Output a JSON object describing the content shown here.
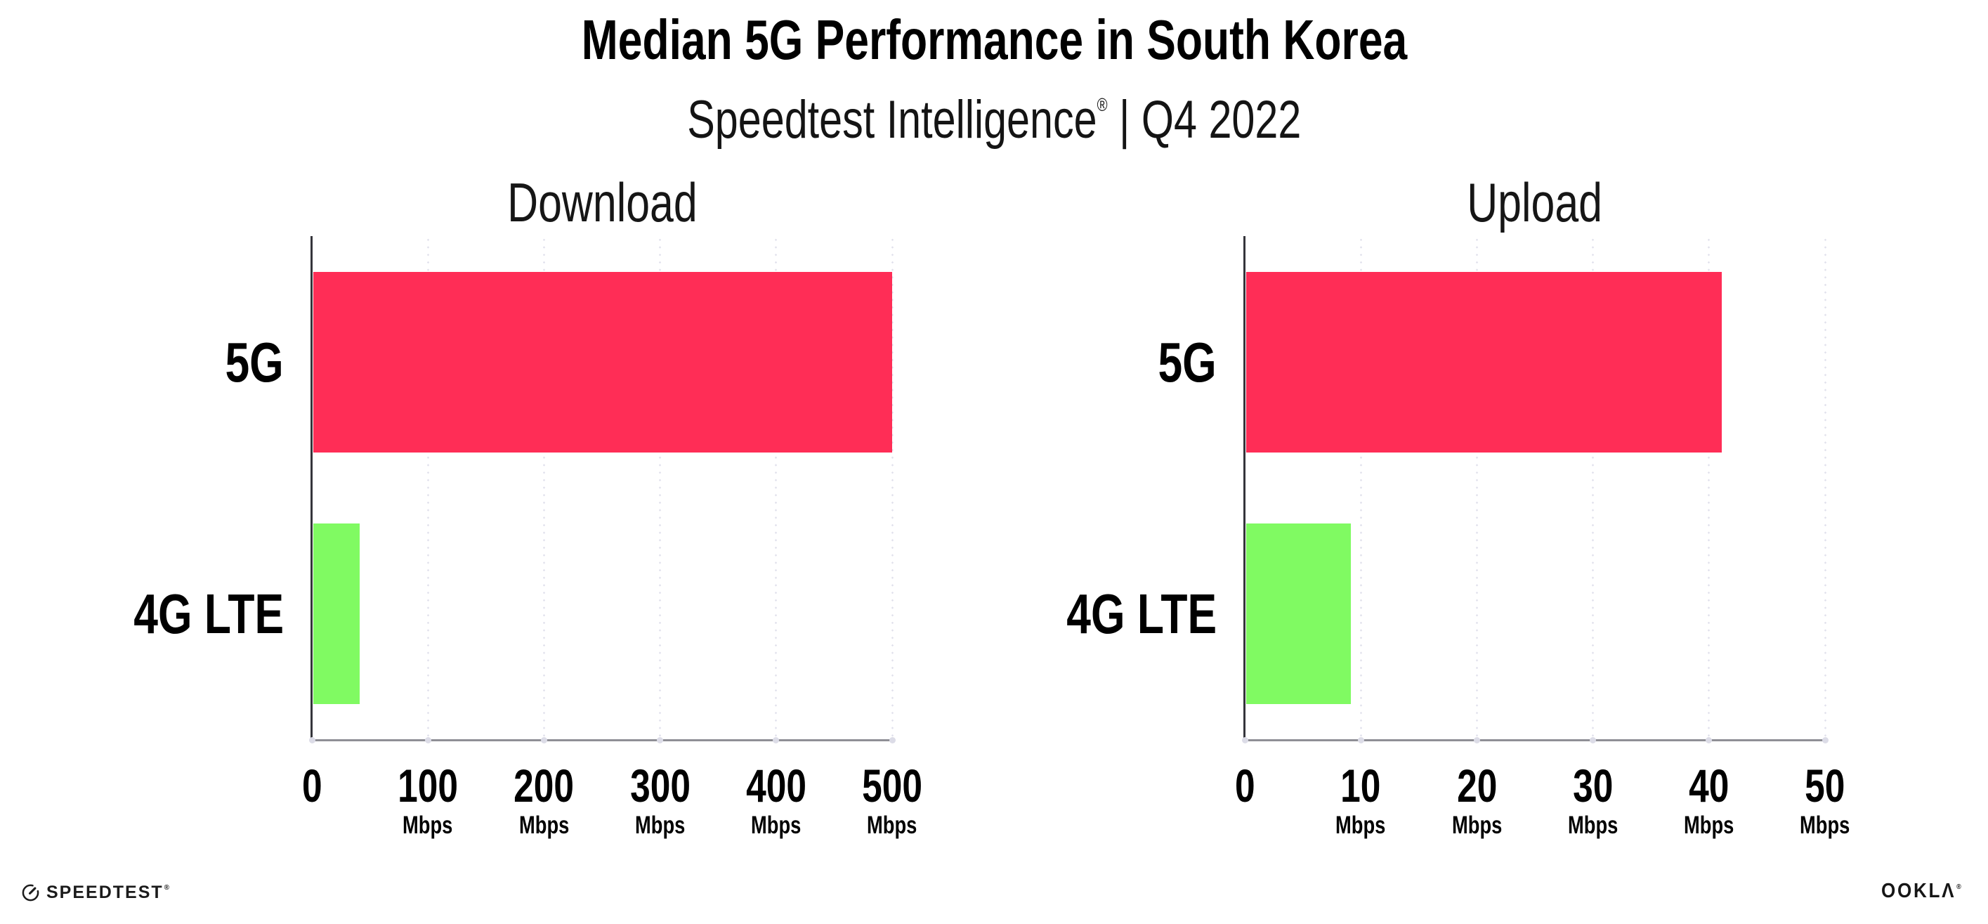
{
  "header": {
    "title": "Median 5G Performance in South Korea",
    "subtitle_brand": "Speedtest Intelligence",
    "subtitle_reg": "®",
    "subtitle_rest": " | Q4 2022"
  },
  "colors": {
    "bar_5g": "#ff2d56",
    "bar_4g_lte": "#80fa62",
    "gridline": "#e1e1ec",
    "baseline": "#8f8f96",
    "axis": "#35353b",
    "tick_dot": "#dcdce7",
    "text": "#000000"
  },
  "chart_data": [
    {
      "type": "bar",
      "orientation": "horizontal",
      "title": "Download",
      "categories": [
        "5G",
        "4G LTE"
      ],
      "values": [
        499,
        40
      ],
      "unit": "Mbps",
      "xlabel": "",
      "ylabel": "",
      "xlim": [
        0,
        500
      ],
      "ticks": [
        0,
        100,
        200,
        300,
        400,
        500
      ],
      "bar_colors": [
        "#ff2d56",
        "#80fa62"
      ],
      "grid": "vertical-dotted",
      "legend": "none"
    },
    {
      "type": "bar",
      "orientation": "horizontal",
      "title": "Upload",
      "categories": [
        "5G",
        "4G LTE"
      ],
      "values": [
        41,
        9
      ],
      "unit": "Mbps",
      "xlabel": "",
      "ylabel": "",
      "xlim": [
        0,
        50
      ],
      "ticks": [
        0,
        10,
        20,
        30,
        40,
        50
      ],
      "bar_colors": [
        "#ff2d56",
        "#80fa62"
      ],
      "grid": "vertical-dotted",
      "legend": "none"
    }
  ],
  "footer": {
    "speedtest_label": "SPEEDTEST",
    "speedtest_mark": "®",
    "ookla_label": "OOKLΛ",
    "ookla_mark": "®"
  }
}
